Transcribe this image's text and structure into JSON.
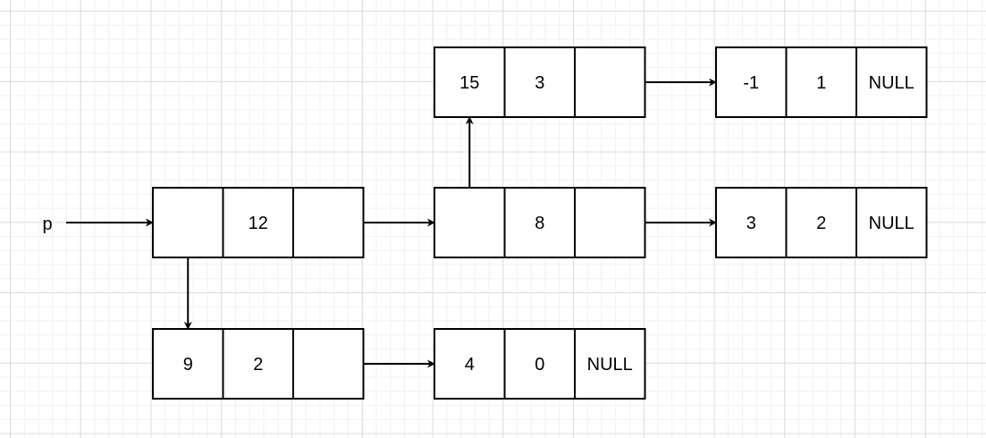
{
  "diagram": {
    "label": "p",
    "nodes": [
      {
        "id": "n1",
        "cells": [
          "",
          "12",
          ""
        ]
      },
      {
        "id": "n2",
        "cells": [
          "",
          "8",
          ""
        ]
      },
      {
        "id": "n3",
        "cells": [
          "15",
          "3",
          ""
        ]
      },
      {
        "id": "n4",
        "cells": [
          "-1",
          "1",
          "NULL"
        ]
      },
      {
        "id": "n5",
        "cells": [
          "3",
          "2",
          "NULL"
        ]
      },
      {
        "id": "n6",
        "cells": [
          "9",
          "2",
          ""
        ]
      },
      {
        "id": "n7",
        "cells": [
          "4",
          "0",
          "NULL"
        ]
      }
    ],
    "edges": [
      {
        "from": "p",
        "to": "n1"
      },
      {
        "from": "n1",
        "to": "n2"
      },
      {
        "from": "n2",
        "to": "n3"
      },
      {
        "from": "n3",
        "to": "n4"
      },
      {
        "from": "n2",
        "to": "n5"
      },
      {
        "from": "n1",
        "to": "n6"
      },
      {
        "from": "n6",
        "to": "n7"
      }
    ],
    "colors": {
      "stroke": "#000000",
      "fill": "#ffffff",
      "text": "#000000"
    }
  }
}
